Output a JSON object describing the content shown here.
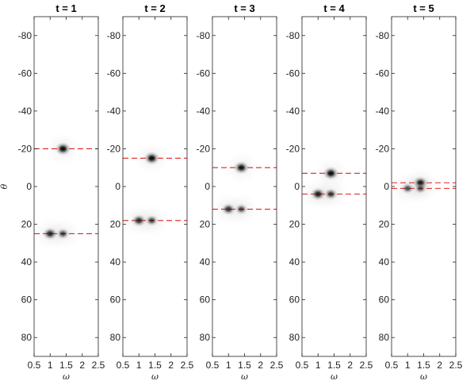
{
  "chart_data": [
    {
      "type": "heatmap",
      "title": "t = 1",
      "xlabel": "ω",
      "ylabel": "θ",
      "xlim": [
        0.5,
        2.5
      ],
      "ylim": [
        -90,
        90
      ],
      "y_reversed": true,
      "xticks": [
        "0.5",
        "1",
        "1.5",
        "2",
        "2.5"
      ],
      "yticks": [
        "-80",
        "-60",
        "-40",
        "-20",
        "0",
        "20",
        "40",
        "60",
        "80"
      ],
      "colormap": "gray-inverted",
      "dashed_lines": [
        {
          "theta": -20,
          "color": "#e02020"
        },
        {
          "theta": 25,
          "color": "#e02020"
        }
      ],
      "peaks": [
        {
          "omega": 1.4,
          "theta": -20,
          "intensity": 1.0
        },
        {
          "omega": 1.0,
          "theta": 25,
          "intensity": 0.85
        },
        {
          "omega": 1.4,
          "theta": 25,
          "intensity": 0.6
        }
      ]
    },
    {
      "type": "heatmap",
      "title": "t = 2",
      "xlabel": "ω",
      "xlim": [
        0.5,
        2.5
      ],
      "ylim": [
        -90,
        90
      ],
      "y_reversed": true,
      "xticks": [
        "0.5",
        "1",
        "1.5",
        "2",
        "2.5"
      ],
      "yticks": [
        "-80",
        "-60",
        "-40",
        "-20",
        "0",
        "20",
        "40",
        "60",
        "80"
      ],
      "colormap": "gray-inverted",
      "dashed_lines": [
        {
          "theta": -15,
          "color": "#e02020"
        },
        {
          "theta": 18,
          "color": "#e02020"
        }
      ],
      "peaks": [
        {
          "omega": 1.4,
          "theta": -15,
          "intensity": 1.0
        },
        {
          "omega": 1.0,
          "theta": 18,
          "intensity": 0.8
        },
        {
          "omega": 1.4,
          "theta": 18,
          "intensity": 0.6
        }
      ]
    },
    {
      "type": "heatmap",
      "title": "t = 3",
      "xlabel": "ω",
      "xlim": [
        0.5,
        2.5
      ],
      "ylim": [
        -90,
        90
      ],
      "y_reversed": true,
      "xticks": [
        "0.5",
        "1",
        "1.5",
        "2",
        "2.5"
      ],
      "yticks": [
        "-80",
        "-60",
        "-40",
        "-20",
        "0",
        "20",
        "40",
        "60",
        "80"
      ],
      "colormap": "gray-inverted",
      "dashed_lines": [
        {
          "theta": -10,
          "color": "#e02020"
        },
        {
          "theta": 12,
          "color": "#e02020"
        }
      ],
      "peaks": [
        {
          "omega": 1.4,
          "theta": -10,
          "intensity": 0.95
        },
        {
          "omega": 1.0,
          "theta": 12,
          "intensity": 0.75
        },
        {
          "omega": 1.4,
          "theta": 12,
          "intensity": 0.55
        }
      ]
    },
    {
      "type": "heatmap",
      "title": "t = 4",
      "xlabel": "ω",
      "xlim": [
        0.5,
        2.5
      ],
      "ylim": [
        -90,
        90
      ],
      "y_reversed": true,
      "xticks": [
        "0.5",
        "1",
        "1.5",
        "2",
        "2.5"
      ],
      "yticks": [
        "-80",
        "-60",
        "-40",
        "-20",
        "0",
        "20",
        "40",
        "60",
        "80"
      ],
      "colormap": "gray-inverted",
      "dashed_lines": [
        {
          "theta": -7,
          "color": "#e02020"
        },
        {
          "theta": 4,
          "color": "#e02020"
        }
      ],
      "peaks": [
        {
          "omega": 1.4,
          "theta": -7,
          "intensity": 1.0
        },
        {
          "omega": 1.0,
          "theta": 4,
          "intensity": 0.9
        },
        {
          "omega": 1.4,
          "theta": 4,
          "intensity": 0.7
        }
      ]
    },
    {
      "type": "heatmap",
      "title": "t = 5",
      "xlabel": "ω",
      "xlim": [
        0.5,
        2.5
      ],
      "ylim": [
        -90,
        90
      ],
      "y_reversed": true,
      "xticks": [
        "0.5",
        "1",
        "1.5",
        "2",
        "2.5"
      ],
      "yticks": [
        "-80",
        "-60",
        "-40",
        "-20",
        "0",
        "20",
        "40",
        "60",
        "80"
      ],
      "colormap": "gray-inverted",
      "dashed_lines": [
        {
          "theta": -2,
          "color": "#e02020"
        },
        {
          "theta": 1,
          "color": "#e02020"
        }
      ],
      "peaks": [
        {
          "omega": 1.4,
          "theta": -2,
          "intensity": 0.9
        },
        {
          "omega": 1.0,
          "theta": 1,
          "intensity": 0.55
        },
        {
          "omega": 1.4,
          "theta": 1,
          "intensity": 0.5
        }
      ]
    }
  ]
}
